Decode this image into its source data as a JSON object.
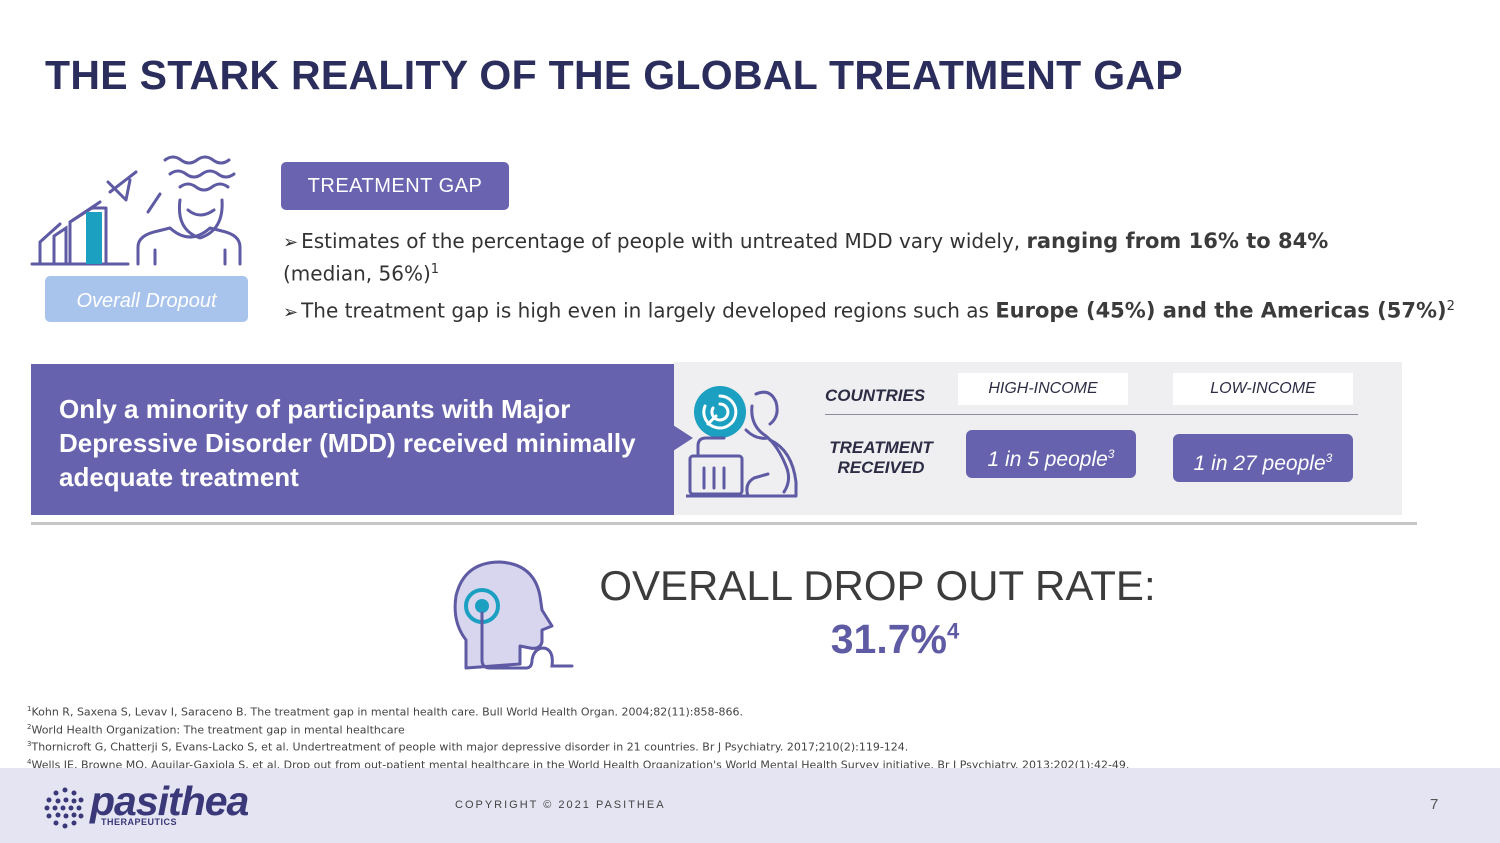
{
  "title": "THE STARK REALITY OF THE GLOBAL TREATMENT GAP",
  "treatment_gap_label": "TREATMENT GAP",
  "overall_dropout_label": "Overall Dropout",
  "bullets": {
    "b1_pre": "Estimates of the percentage of people with untreated MDD vary widely, ",
    "b1_bold": "ranging from 16% to 84%",
    "b1_post": " (median, 56%)",
    "b1_sup": "1",
    "b2_pre": "The treatment gap is high even in largely developed regions such as ",
    "b2_bold": "Europe (45%) and the Americas (57%)",
    "b2_sup": "2"
  },
  "callout": "Only a minority of participants with Major Depressive Disorder (MDD) received minimally adequate treatment",
  "table": {
    "row_header_countries": "COUNTRIES",
    "row_header_treatment_line1": "TREATMENT",
    "row_header_treatment_line2": "RECEIVED",
    "col_high": "HIGH-INCOME",
    "col_low": "LOW-INCOME",
    "high_value": "1 in 5 people",
    "high_sup": "3",
    "low_value": "1 in 27 people",
    "low_sup": "3"
  },
  "dropout": {
    "heading": "OVERALL DROP OUT RATE:",
    "value": "31.7%",
    "sup": "4"
  },
  "references": [
    {
      "n": "1",
      "text": "Kohn R, Saxena S, Levav I, Saraceno B. The treatment gap in mental health care. Bull World Health Organ. 2004;82(11):858-866."
    },
    {
      "n": "2",
      "text": "World Health Organization: The treatment gap in mental healthcare"
    },
    {
      "n": "3",
      "text": "Thornicroft G, Chatterji S, Evans-Lacko S, et al. Undertreatment of people with major depressive disorder in 21 countries. Br J Psychiatry. 2017;210(2):119-124."
    },
    {
      "n": "4",
      "text": "Wells JE, Browne MO, Aguilar-Gaxiola S, et al. Drop out from out-patient mental healthcare in the World Health Organization's World Mental Health Survey initiative. Br J Psychiatry. 2013;202(1):42-49."
    }
  ],
  "footer": {
    "brand": "pasithea",
    "brand_sub": "THERAPEUTICS",
    "copyright": "COPYRIGHT © 2021 PASITHEA",
    "page_number": "7"
  },
  "colors": {
    "title": "#2b2d5c",
    "accent_purple": "#6762ad",
    "light_blue": "#a9c4ec",
    "teal": "#1ca0c2",
    "footer_bg": "#e4e4f3"
  }
}
